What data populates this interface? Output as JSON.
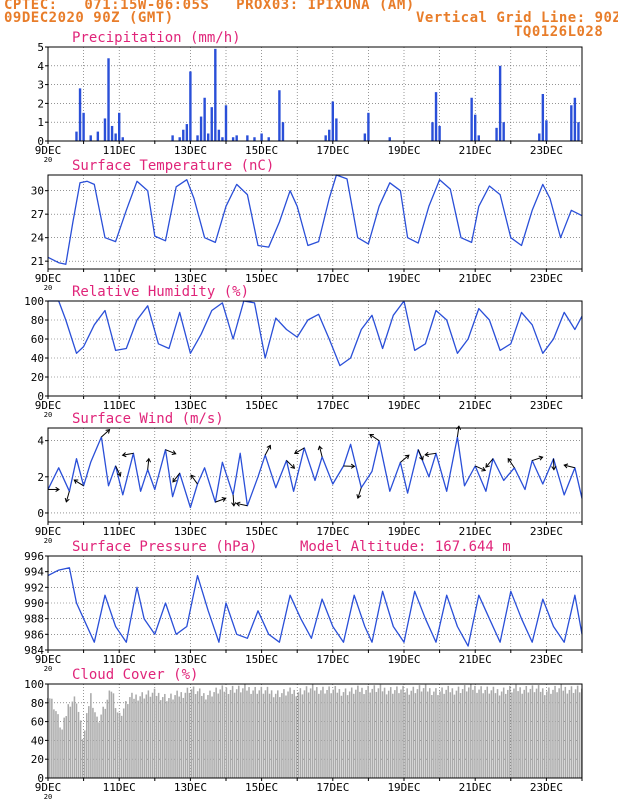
{
  "header": {
    "line1": "CPTEC:   071:15W-06:05S   PROX03: IPIXUNA (AM)",
    "line2_left": "09DEC2020 90Z (GMT)",
    "line2_right": "Vertical Grid Line: 90Z",
    "line3_right": "TQ0126L028"
  },
  "colors": {
    "header": "#e87d2a",
    "title": "#e0257a",
    "series": "#2a4fd8",
    "cloud": "#aaaaaa",
    "vector": "#000000"
  },
  "x_axis": {
    "start_day": 9,
    "end_day": 24,
    "tick_labels": [
      "9DEC",
      "11DEC",
      "13DEC",
      "15DEC",
      "17DEC",
      "19DEC",
      "21DEC",
      "23DEC"
    ],
    "tick_days": [
      9,
      11,
      13,
      15,
      17,
      19,
      21,
      23
    ],
    "year_fragment": "20"
  },
  "chart_data": [
    {
      "type": "bar",
      "title": "Precipitation (mm/h)",
      "ylim": [
        0,
        5
      ],
      "yticks": [
        0,
        1,
        2,
        3,
        4,
        5
      ],
      "x": [
        9.8,
        9.9,
        10.0,
        10.2,
        10.4,
        10.6,
        10.7,
        10.8,
        10.9,
        11.0,
        11.1,
        12.5,
        12.7,
        12.8,
        12.9,
        13.0,
        13.2,
        13.3,
        13.4,
        13.5,
        13.6,
        13.7,
        13.8,
        13.9,
        14.0,
        14.2,
        14.3,
        14.6,
        14.8,
        15.0,
        15.2,
        15.5,
        15.6,
        16.8,
        16.9,
        17.0,
        17.1,
        17.9,
        18.0,
        18.6,
        19.8,
        19.9,
        20.0,
        20.9,
        21.0,
        21.1,
        21.6,
        21.7,
        21.8,
        22.8,
        22.9,
        23.0,
        23.7,
        23.8,
        23.9
      ],
      "values": [
        0.5,
        2.8,
        1.5,
        0.3,
        0.5,
        1.2,
        4.4,
        0.8,
        0.4,
        1.5,
        0.2,
        0.3,
        0.2,
        0.6,
        0.9,
        3.7,
        0.3,
        1.3,
        2.3,
        0.4,
        1.8,
        4.9,
        0.6,
        0.2,
        1.9,
        0.2,
        0.3,
        0.3,
        0.2,
        0.4,
        0.2,
        2.7,
        1.0,
        0.3,
        0.6,
        2.1,
        1.2,
        0.4,
        1.5,
        0.2,
        1.0,
        2.6,
        0.8,
        2.3,
        1.4,
        0.3,
        0.7,
        4.0,
        1.0,
        0.4,
        2.5,
        1.1,
        1.9,
        2.3,
        1.0
      ]
    },
    {
      "type": "line",
      "title": "Surface Temperature (nC)",
      "ylim": [
        20,
        32
      ],
      "yticks": [
        21,
        24,
        27,
        30
      ],
      "x": [
        9.0,
        9.3,
        9.5,
        9.7,
        9.9,
        10.1,
        10.3,
        10.6,
        10.9,
        11.2,
        11.5,
        11.8,
        12.0,
        12.3,
        12.6,
        12.9,
        13.1,
        13.4,
        13.7,
        14.0,
        14.3,
        14.6,
        14.9,
        15.2,
        15.5,
        15.8,
        16.0,
        16.3,
        16.6,
        16.9,
        17.1,
        17.4,
        17.7,
        18.0,
        18.3,
        18.6,
        18.9,
        19.1,
        19.4,
        19.7,
        20.0,
        20.3,
        20.6,
        20.9,
        21.1,
        21.4,
        21.7,
        22.0,
        22.3,
        22.6,
        22.9,
        23.1,
        23.4,
        23.7,
        24.0
      ],
      "values": [
        21.5,
        20.8,
        20.6,
        26.0,
        31.0,
        31.2,
        30.8,
        24.0,
        23.5,
        27.5,
        31.2,
        30.0,
        24.2,
        23.6,
        30.5,
        31.4,
        29.0,
        24.0,
        23.4,
        28.0,
        30.8,
        29.5,
        23.0,
        22.8,
        26.0,
        30.0,
        28.0,
        23.0,
        23.5,
        29.0,
        32.0,
        31.5,
        24.0,
        23.2,
        28.0,
        31.0,
        30.0,
        24.0,
        23.3,
        28.0,
        31.4,
        30.2,
        24.0,
        23.4,
        28.0,
        30.6,
        29.5,
        24.0,
        23.0,
        27.5,
        30.8,
        29.0,
        24.0,
        27.5,
        26.8
      ]
    },
    {
      "type": "line",
      "title": "Relative Humidity (%)",
      "ylim": [
        0,
        100
      ],
      "yticks": [
        0,
        20,
        40,
        60,
        80,
        100
      ],
      "x": [
        9.0,
        9.3,
        9.5,
        9.8,
        10.0,
        10.3,
        10.6,
        10.9,
        11.2,
        11.5,
        11.8,
        12.1,
        12.4,
        12.7,
        13.0,
        13.3,
        13.6,
        13.9,
        14.2,
        14.5,
        14.8,
        15.1,
        15.4,
        15.7,
        16.0,
        16.3,
        16.6,
        16.9,
        17.2,
        17.5,
        17.8,
        18.1,
        18.4,
        18.7,
        19.0,
        19.3,
        19.6,
        19.9,
        20.2,
        20.5,
        20.8,
        21.1,
        21.4,
        21.7,
        22.0,
        22.3,
        22.6,
        22.9,
        23.2,
        23.5,
        23.8,
        24.0
      ],
      "values": [
        100,
        100,
        80,
        45,
        52,
        75,
        90,
        48,
        50,
        80,
        95,
        55,
        50,
        88,
        45,
        65,
        90,
        98,
        60,
        100,
        98,
        40,
        82,
        70,
        62,
        80,
        86,
        60,
        32,
        40,
        70,
        85,
        50,
        85,
        100,
        48,
        55,
        90,
        80,
        45,
        60,
        92,
        80,
        48,
        55,
        88,
        75,
        45,
        60,
        88,
        70,
        84
      ]
    },
    {
      "type": "line",
      "title": "Surface Wind (m/s)",
      "ylim": [
        -0.5,
        4.7
      ],
      "yticks": [
        0,
        2,
        4
      ],
      "x": [
        9.0,
        9.3,
        9.6,
        9.8,
        10.0,
        10.2,
        10.5,
        10.7,
        10.9,
        11.1,
        11.4,
        11.6,
        11.8,
        12.0,
        12.3,
        12.5,
        12.7,
        13.0,
        13.2,
        13.4,
        13.7,
        13.9,
        14.2,
        14.4,
        14.6,
        14.9,
        15.1,
        15.4,
        15.7,
        15.9,
        16.2,
        16.5,
        16.7,
        17.0,
        17.3,
        17.5,
        17.8,
        18.1,
        18.3,
        18.6,
        18.9,
        19.1,
        19.4,
        19.7,
        19.9,
        20.2,
        20.5,
        20.7,
        21.0,
        21.3,
        21.5,
        21.8,
        22.1,
        22.4,
        22.6,
        22.9,
        23.2,
        23.5,
        23.8,
        24.0
      ],
      "values": [
        1.3,
        2.5,
        1.2,
        3.0,
        1.5,
        2.8,
        4.2,
        1.5,
        2.6,
        1.0,
        3.3,
        1.2,
        2.4,
        1.3,
        3.5,
        0.9,
        2.2,
        0.3,
        1.6,
        2.5,
        0.6,
        2.8,
        1.0,
        3.3,
        0.4,
        2.0,
        3.2,
        1.4,
        2.9,
        1.2,
        3.6,
        1.8,
        3.1,
        1.6,
        2.6,
        3.8,
        1.4,
        2.3,
        4.0,
        1.2,
        2.8,
        1.1,
        3.5,
        2.0,
        3.3,
        1.2,
        4.2,
        1.5,
        2.6,
        1.2,
        3.0,
        1.8,
        2.5,
        1.3,
        2.9,
        1.6,
        3.0,
        1.0,
        2.5,
        0.8
      ]
    },
    {
      "type": "line",
      "title": "Surface Pressure (hPa)",
      "annotation": "Model Altitude: 167.644 m",
      "ylim": [
        984,
        996
      ],
      "yticks": [
        984,
        986,
        988,
        990,
        992,
        994,
        996
      ],
      "x": [
        9.0,
        9.3,
        9.6,
        9.8,
        10.0,
        10.3,
        10.6,
        10.9,
        11.2,
        11.5,
        11.7,
        12.0,
        12.3,
        12.6,
        12.9,
        13.2,
        13.5,
        13.8,
        14.0,
        14.3,
        14.6,
        14.9,
        15.2,
        15.5,
        15.8,
        16.1,
        16.4,
        16.7,
        17.0,
        17.3,
        17.6,
        17.9,
        18.1,
        18.4,
        18.7,
        19.0,
        19.3,
        19.6,
        19.9,
        20.2,
        20.5,
        20.8,
        21.1,
        21.4,
        21.7,
        22.0,
        22.3,
        22.6,
        22.9,
        23.2,
        23.5,
        23.8,
        24.0
      ],
      "values": [
        993.5,
        994.2,
        994.5,
        990.0,
        988.0,
        985.0,
        991.0,
        987.0,
        985.0,
        992.0,
        988.0,
        986.0,
        990.0,
        986.0,
        987.0,
        993.5,
        989.0,
        985.0,
        990.0,
        986.0,
        985.5,
        989.0,
        986.0,
        985.0,
        991.0,
        988.0,
        985.5,
        990.5,
        987.0,
        985.0,
        991.0,
        987.0,
        985.0,
        991.5,
        987.0,
        985.0,
        991.5,
        988.0,
        985.0,
        991.0,
        987.0,
        984.5,
        991.0,
        988.0,
        985.0,
        991.5,
        988.0,
        985.0,
        990.5,
        987.0,
        985.0,
        991.0,
        986.0
      ]
    },
    {
      "type": "area",
      "title": "Cloud Cover (%)",
      "ylim": [
        0,
        100
      ],
      "yticks": [
        0,
        20,
        40,
        60,
        80,
        100
      ],
      "x": [
        9.0,
        9.2,
        9.4,
        9.6,
        9.8,
        10.0,
        10.2,
        10.4,
        10.6,
        10.8,
        11.0,
        11.3,
        11.6,
        12.0,
        12.4,
        12.8,
        13.0,
        13.4,
        13.8,
        14.2,
        14.4,
        14.6,
        15.0,
        15.5,
        16.0,
        16.5,
        17.0,
        17.5,
        18.0,
        18.5,
        19.0,
        19.5,
        20.0,
        20.5,
        21.0,
        21.5,
        22.0,
        22.5,
        23.0,
        23.5,
        24.0
      ],
      "values": [
        90,
        75,
        50,
        80,
        85,
        40,
        90,
        60,
        75,
        95,
        65,
        85,
        88,
        90,
        85,
        90,
        95,
        88,
        93,
        95,
        94,
        95,
        93,
        90,
        92,
        95,
        93,
        92,
        95,
        94,
        93,
        95,
        92,
        94,
        96,
        92,
        94,
        95,
        93,
        95,
        94
      ]
    }
  ]
}
